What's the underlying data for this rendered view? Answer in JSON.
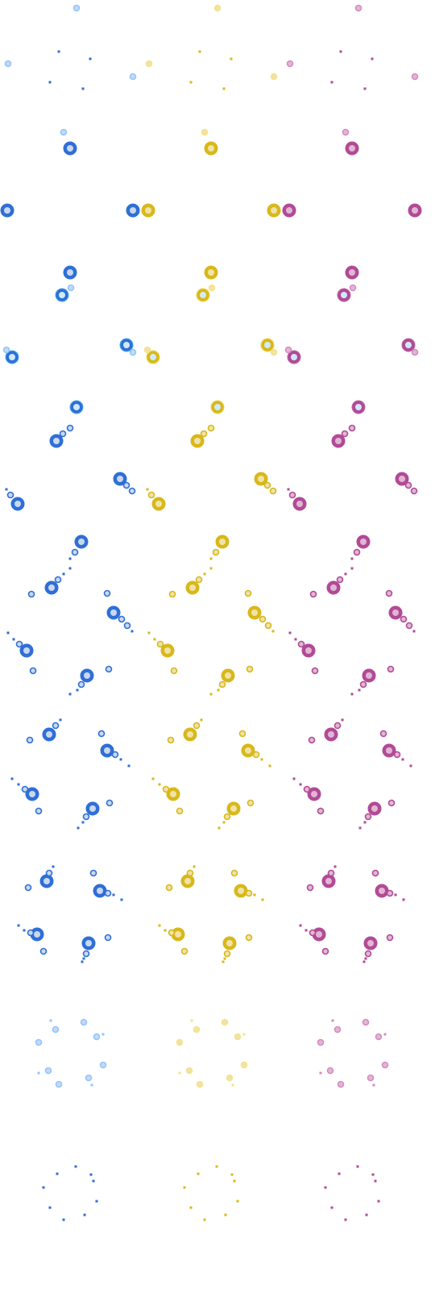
{
  "sprite_sheet": {
    "description_hidden": "",
    "palettes": [
      {
        "name": "blue",
        "core": "#2f6fd6",
        "glow": "#4aa8f0",
        "halo": "#8fc6ff",
        "inner": "#c9d8f0"
      },
      {
        "name": "yellow",
        "core": "#d8b81a",
        "glow": "#efd64a",
        "halo": "#f4e38a",
        "inner": "#efe3a8"
      },
      {
        "name": "pink",
        "core": "#b24a96",
        "glow": "#c063a8",
        "halo": "#d68bc2",
        "inner": "#e0b7d3"
      }
    ],
    "frame_count": 13
  }
}
